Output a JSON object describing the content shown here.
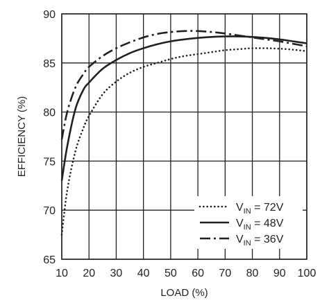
{
  "chart_data": {
    "type": "line",
    "title": "",
    "xlabel": "LOAD (%)",
    "ylabel": "EFFICIENCY (%)",
    "xlim": [
      10,
      100
    ],
    "ylim": [
      65,
      90
    ],
    "x_ticks": [
      10,
      20,
      30,
      40,
      50,
      60,
      70,
      80,
      90,
      100
    ],
    "y_ticks": [
      65,
      70,
      75,
      80,
      85,
      90
    ],
    "grid": true,
    "legend_position": "bottom-right",
    "line_color": "#231f20",
    "series": [
      {
        "name": "VIN = 72V",
        "name_parts": {
          "prefix": "V",
          "sub": "IN",
          "suffix": " = 72V"
        },
        "style": "dotted",
        "x": [
          10,
          12,
          15,
          18,
          20,
          25,
          30,
          35,
          40,
          45,
          50,
          55,
          60,
          65,
          70,
          75,
          80,
          85,
          90,
          95,
          100
        ],
        "y": [
          67.5,
          72,
          76,
          78.4,
          79.6,
          81.8,
          83.1,
          84.0,
          84.6,
          85.0,
          85.4,
          85.7,
          85.9,
          86.1,
          86.3,
          86.4,
          86.5,
          86.5,
          86.45,
          86.35,
          86.2
        ]
      },
      {
        "name": "VIN = 48V",
        "name_parts": {
          "prefix": "V",
          "sub": "IN",
          "suffix": " = 48V"
        },
        "style": "solid",
        "x": [
          10,
          12,
          15,
          18,
          20,
          25,
          30,
          35,
          40,
          45,
          50,
          55,
          60,
          65,
          70,
          75,
          80,
          85,
          90,
          95,
          100
        ],
        "y": [
          73,
          76.5,
          80.3,
          82.3,
          83.0,
          84.4,
          85.3,
          86.0,
          86.5,
          86.9,
          87.2,
          87.4,
          87.55,
          87.65,
          87.7,
          87.7,
          87.65,
          87.55,
          87.4,
          87.2,
          87.0
        ]
      },
      {
        "name": "VIN = 36V",
        "name_parts": {
          "prefix": "V",
          "sub": "IN",
          "suffix": " = 36V"
        },
        "style": "dashdot",
        "x": [
          10,
          12,
          15,
          18,
          20,
          25,
          30,
          35,
          40,
          45,
          50,
          55,
          60,
          65,
          70,
          75,
          80,
          85,
          90,
          95,
          100
        ],
        "y": [
          77.2,
          80.0,
          82.5,
          83.9,
          84.6,
          85.7,
          86.5,
          87.1,
          87.6,
          87.95,
          88.15,
          88.25,
          88.25,
          88.15,
          88.0,
          87.8,
          87.6,
          87.4,
          87.2,
          86.95,
          86.7
        ]
      }
    ]
  }
}
